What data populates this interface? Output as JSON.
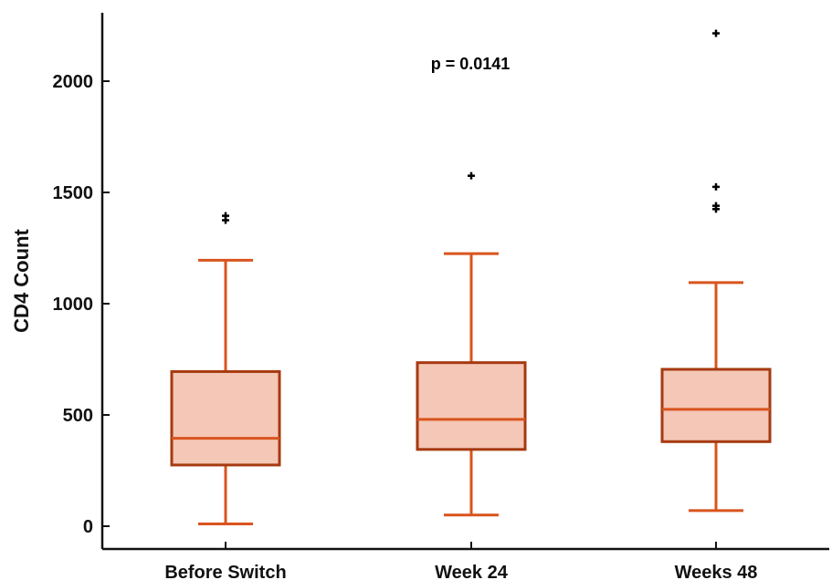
{
  "chart_data": {
    "type": "box",
    "ylabel": "CD4 Count",
    "xlabel": "",
    "ylim": [
      -100,
      2320
    ],
    "yticks": [
      0,
      500,
      1000,
      1500,
      2000
    ],
    "categories": [
      "Before Switch",
      "Week 24",
      "Weeks 48"
    ],
    "boxes": [
      {
        "whisker_low": 10,
        "q1": 275,
        "median": 395,
        "q3": 695,
        "whisker_high": 1195,
        "outliers": [
          1375,
          1395
        ]
      },
      {
        "whisker_low": 50,
        "q1": 345,
        "median": 480,
        "q3": 735,
        "whisker_high": 1225,
        "outliers": [
          1575
        ]
      },
      {
        "whisker_low": 70,
        "q1": 380,
        "median": 525,
        "q3": 705,
        "whisker_high": 1095,
        "outliers": [
          1425,
          1440,
          1525,
          2215
        ]
      }
    ],
    "annotation": "p = 0.0141",
    "colors": {
      "fill": "#f4c7b6",
      "edge": "#a63a10",
      "whisker": "#d9541e",
      "median": "#d9541e",
      "outlier": "#000000"
    }
  }
}
